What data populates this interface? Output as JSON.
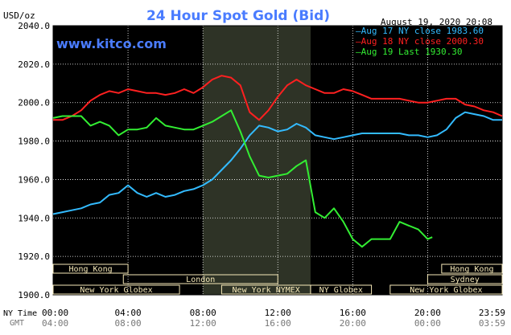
{
  "header": {
    "unit": "USD/oz",
    "title": "24 Hour Spot Gold (Bid)",
    "date": "August 19, 2020 20:08",
    "site": "www.kitco.com"
  },
  "colors": {
    "background": "#000000",
    "grid": "#ffffff",
    "title": "#4a7cff",
    "site": "#4a7cff",
    "aug17": "#33bbff",
    "aug18": "#ff2020",
    "aug19": "#33ee33",
    "band_fill": "#f6e9b8",
    "band_text": "#000000",
    "shade": "#2e3326"
  },
  "sessions": [
    {
      "label": "Hong Kong",
      "row": 0,
      "start": 0.0,
      "end": 4.0
    },
    {
      "label": "Hong Kong",
      "row": 0,
      "start": 20.75,
      "end": 23.98
    },
    {
      "label": "London",
      "row": 1,
      "start": 3.75,
      "end": 12.0
    },
    {
      "label": "Sydney",
      "row": 1,
      "start": 20.0,
      "end": 23.98
    },
    {
      "label": "New York Globex",
      "row": 2,
      "start": 0.0,
      "end": 6.75
    },
    {
      "label": "New York NYMEX",
      "row": 2,
      "start": 9.0,
      "end": 13.75
    },
    {
      "label": "NY Globex",
      "row": 2,
      "start": 13.75,
      "end": 17.0
    },
    {
      "label": "New York Globex",
      "row": 2,
      "start": 18.0,
      "end": 23.98
    }
  ],
  "time_axis": {
    "ny_label": "NY Time",
    "gmt_label": "GMT",
    "ny_ticks": [
      "00:00",
      "04:00",
      "08:00",
      "12:00",
      "16:00",
      "20:00",
      "23:59"
    ],
    "gmt_ticks": [
      "04:00",
      "08:00",
      "12:00",
      "16:00",
      "20:00",
      "00:00",
      "03:59"
    ]
  },
  "chart_data": {
    "type": "line",
    "title": "24 Hour Spot Gold (Bid)",
    "ylabel": "USD/oz",
    "xlabel": "NY Time",
    "xlim": [
      0,
      23.98
    ],
    "ylim": [
      1900,
      2040
    ],
    "yticks": [
      1900,
      1920,
      1940,
      1960,
      1980,
      2000,
      2020,
      2040
    ],
    "ytick_labels": [
      "1900.0",
      "1920.0",
      "1940.0",
      "1960.0",
      "1980.0",
      "2000.0",
      "2020.0",
      "2040.0"
    ],
    "shaded_region": [
      8.0,
      13.75
    ],
    "grid": true,
    "legend_position": "top-right",
    "series": [
      {
        "name": "Aug 17",
        "legend": "Aug 17 NY close 1983.60",
        "color": "#33bbff",
        "x": [
          0,
          0.5,
          1,
          1.5,
          2,
          2.5,
          3,
          3.5,
          4,
          4.5,
          5,
          5.5,
          6,
          6.5,
          7,
          7.5,
          8,
          8.5,
          9,
          9.5,
          10,
          10.5,
          11,
          11.5,
          12,
          12.5,
          13,
          13.5,
          14,
          14.5,
          15,
          15.5,
          16,
          16.5,
          17,
          17.5,
          18,
          18.5,
          19,
          19.5,
          20,
          20.5,
          21,
          21.5,
          22,
          22.5,
          23,
          23.5,
          23.98
        ],
        "y": [
          1942,
          1943,
          1944,
          1945,
          1947,
          1948,
          1952,
          1953,
          1957,
          1953,
          1951,
          1953,
          1951,
          1952,
          1954,
          1955,
          1957,
          1960,
          1965,
          1970,
          1976,
          1983,
          1988,
          1987,
          1985,
          1986,
          1989,
          1987,
          1983,
          1982,
          1981,
          1982,
          1983,
          1984,
          1984,
          1984,
          1984,
          1984,
          1983,
          1983,
          1982,
          1983,
          1986,
          1992,
          1995,
          1994,
          1993,
          1991,
          1991
        ]
      },
      {
        "name": "Aug 18",
        "legend": "Aug 18 NY close 2000.30",
        "color": "#ff2020",
        "x": [
          0,
          0.5,
          1,
          1.5,
          2,
          2.5,
          3,
          3.5,
          4,
          4.5,
          5,
          5.5,
          6,
          6.5,
          7,
          7.5,
          8,
          8.5,
          9,
          9.5,
          10,
          10.5,
          11,
          11.5,
          12,
          12.5,
          13,
          13.5,
          14,
          14.5,
          15,
          15.5,
          16,
          16.5,
          17,
          17.5,
          18,
          18.5,
          19,
          19.5,
          20,
          20.5,
          21,
          21.5,
          22,
          22.5,
          23,
          23.5,
          23.98
        ],
        "y": [
          1991,
          1991,
          1993,
          1996,
          2001,
          2004,
          2006,
          2005,
          2007,
          2006,
          2005,
          2005,
          2004,
          2005,
          2007,
          2005,
          2008,
          2012,
          2014,
          2013,
          2009,
          1995,
          1991,
          1996,
          2003,
          2009,
          2012,
          2009,
          2007,
          2005,
          2005,
          2007,
          2006,
          2004,
          2002,
          2002,
          2002,
          2002,
          2001,
          2000,
          2000,
          2001,
          2002,
          2002,
          1999,
          1998,
          1996,
          1995,
          1993
        ]
      },
      {
        "name": "Aug 19",
        "legend": "Aug 19 Last 1930.30",
        "color": "#33ee33",
        "x": [
          0,
          0.5,
          1,
          1.5,
          2,
          2.5,
          3,
          3.5,
          4,
          4.5,
          5,
          5.5,
          6,
          6.5,
          7,
          7.5,
          8,
          8.5,
          9,
          9.5,
          10,
          10.5,
          11,
          11.5,
          12,
          12.5,
          13,
          13.5,
          14,
          14.5,
          15,
          15.5,
          16,
          16.5,
          17,
          17.5,
          18,
          18.5,
          19,
          19.5,
          20,
          20.25
        ],
        "y": [
          1992,
          1993,
          1993,
          1993,
          1988,
          1990,
          1988,
          1983,
          1986,
          1986,
          1987,
          1992,
          1988,
          1987,
          1986,
          1986,
          1988,
          1990,
          1993,
          1996,
          1985,
          1972,
          1962,
          1961,
          1962,
          1963,
          1967,
          1970,
          1943,
          1940,
          1945,
          1938,
          1929,
          1925,
          1929,
          1929,
          1929,
          1938,
          1936,
          1934,
          1929,
          1930
        ]
      }
    ]
  }
}
